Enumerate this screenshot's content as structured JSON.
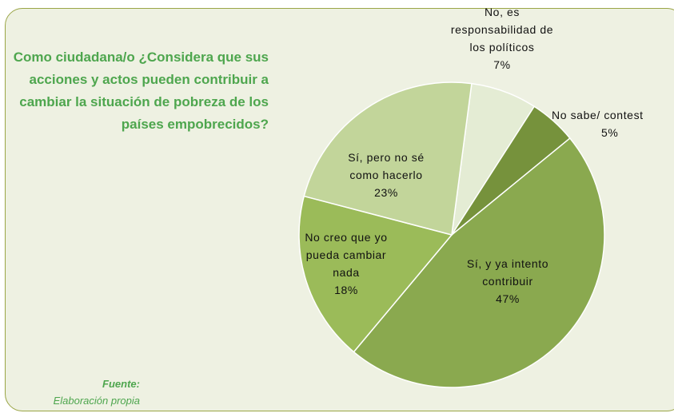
{
  "chart_data": {
    "type": "pie",
    "title": "Como ciudadana/o ¿Considera que sus acciones y actos pueden contribuir a cambiar la situación de pobreza de los países empobrecidos?",
    "source_label": "Fuente:",
    "source": "Elaboración propia",
    "categories": [
      "No, es responsabilidad de los políticos",
      "No sabe/ contest",
      "Sí, y ya intento contribuir",
      "No creo que yo pueda cambiar nada",
      "Sí, pero no sé como hacerlo"
    ],
    "values": [
      7,
      5,
      47,
      18,
      23
    ],
    "value_labels": [
      "7%",
      "5%",
      "47%",
      "18%",
      "23%"
    ],
    "colors": [
      "#e4ecd4",
      "#76923c",
      "#8aa94f",
      "#9bbb59",
      "#c2d59a"
    ]
  }
}
